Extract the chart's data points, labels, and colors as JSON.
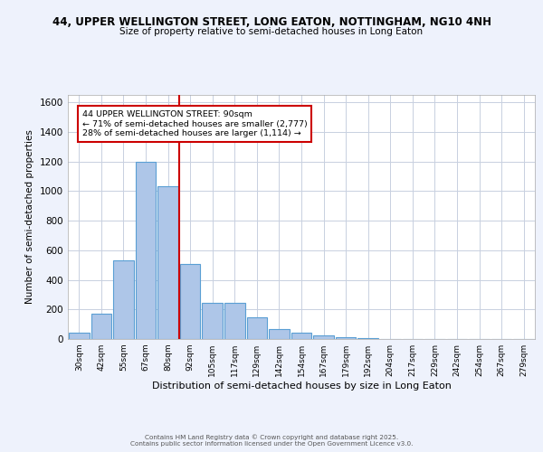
{
  "title1": "44, UPPER WELLINGTON STREET, LONG EATON, NOTTINGHAM, NG10 4NH",
  "title2": "Size of property relative to semi-detached houses in Long Eaton",
  "xlabel": "Distribution of semi-detached houses by size in Long Eaton",
  "ylabel": "Number of semi-detached properties",
  "categories": [
    "30sqm",
    "42sqm",
    "55sqm",
    "67sqm",
    "80sqm",
    "92sqm",
    "105sqm",
    "117sqm",
    "129sqm",
    "142sqm",
    "154sqm",
    "167sqm",
    "179sqm",
    "192sqm",
    "204sqm",
    "217sqm",
    "229sqm",
    "242sqm",
    "254sqm",
    "267sqm",
    "279sqm"
  ],
  "values": [
    40,
    170,
    530,
    1200,
    1030,
    510,
    245,
    245,
    145,
    65,
    40,
    25,
    10,
    5,
    0,
    0,
    0,
    0,
    0,
    0,
    0
  ],
  "bar_color": "#aec6e8",
  "bar_edge_color": "#5a9fd4",
  "vline_color": "#cc0000",
  "annotation_title": "44 UPPER WELLINGTON STREET: 90sqm",
  "annotation_line1": "← 71% of semi-detached houses are smaller (2,777)",
  "annotation_line2": "28% of semi-detached houses are larger (1,114) →",
  "annotation_box_color": "#cc0000",
  "ylim": [
    0,
    1650
  ],
  "yticks": [
    0,
    200,
    400,
    600,
    800,
    1000,
    1200,
    1400,
    1600
  ],
  "footer1": "Contains HM Land Registry data © Crown copyright and database right 2025.",
  "footer2": "Contains public sector information licensed under the Open Government Licence v3.0.",
  "bg_color": "#eef2fc",
  "plot_bg_color": "#ffffff",
  "grid_color": "#c8d0e0"
}
